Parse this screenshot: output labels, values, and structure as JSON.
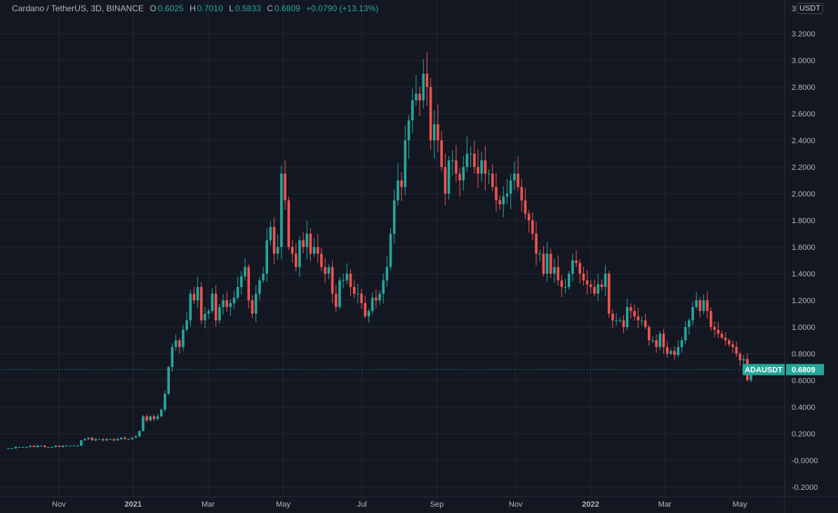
{
  "header": {
    "symbol": "Cardano / TetherUS, 3D, BINANCE",
    "open_label": "O",
    "open": "0.6025",
    "high_label": "H",
    "high": "0.7010",
    "low_label": "L",
    "low": "0.5833",
    "close_label": "C",
    "close": "0.6809",
    "change": "+0.0790 (+13.13%)"
  },
  "price_axis": {
    "unit": "USDT",
    "top_partial": "3"
  },
  "current_price": {
    "ticker": "ADAUSDT",
    "value": "0.6809",
    "price": 0.6809
  },
  "colors": {
    "background": "#131722",
    "up": "#26a69a",
    "down": "#ef5350",
    "grid": "#232733",
    "text": "#b2b5be"
  },
  "chart_data": {
    "type": "candlestick",
    "title": "Cardano / TetherUS, 3D, BINANCE",
    "xlabel": "",
    "ylabel": "USDT",
    "ylim": [
      -0.25,
      3.35
    ],
    "grid": true,
    "yticks": [
      3.2,
      3.0,
      2.8,
      2.6,
      2.4,
      2.2,
      2.0,
      1.8,
      1.6,
      1.4,
      1.2,
      1.0,
      0.8,
      0.6,
      0.4,
      0.2,
      0.0,
      -0.2
    ],
    "ytick_labels": [
      "3.2000",
      "3.0000",
      "2.8000",
      "2.6000",
      "2.4000",
      "2.2000",
      "2.0000",
      "1.8000",
      "1.6000",
      "1.4000",
      "1.2000",
      "1.0000",
      "0.8000",
      "0.6000",
      "0.4000",
      "0.2000",
      "-0.0000",
      "-0.2000"
    ],
    "xticks": [
      {
        "label": "Nov",
        "pos": 0.068
      },
      {
        "label": "2021",
        "pos": 0.168
      },
      {
        "label": "Mar",
        "pos": 0.269
      },
      {
        "label": "May",
        "pos": 0.37
      },
      {
        "label": "Jul",
        "pos": 0.476
      },
      {
        "label": "Sep",
        "pos": 0.577
      },
      {
        "label": "Nov",
        "pos": 0.683
      },
      {
        "label": "2022",
        "pos": 0.784
      },
      {
        "label": "Mar",
        "pos": 0.884
      },
      {
        "label": "May",
        "pos": 0.985
      }
    ],
    "closes": [
      0.09,
      0.09,
      0.1,
      0.1,
      0.1,
      0.1,
      0.11,
      0.1,
      0.11,
      0.11,
      0.1,
      0.1,
      0.1,
      0.11,
      0.1,
      0.11,
      0.11,
      0.11,
      0.11,
      0.11,
      0.15,
      0.16,
      0.17,
      0.15,
      0.16,
      0.16,
      0.15,
      0.16,
      0.16,
      0.15,
      0.16,
      0.17,
      0.16,
      0.16,
      0.17,
      0.18,
      0.22,
      0.33,
      0.3,
      0.33,
      0.31,
      0.33,
      0.38,
      0.5,
      0.7,
      0.85,
      0.9,
      0.85,
      0.98,
      1.05,
      1.25,
      1.2,
      1.3,
      1.05,
      1.1,
      1.12,
      1.25,
      1.05,
      1.15,
      1.2,
      1.15,
      1.18,
      1.22,
      1.3,
      1.38,
      1.45,
      1.2,
      1.1,
      1.25,
      1.35,
      1.4,
      1.65,
      1.75,
      1.55,
      1.6,
      2.15,
      1.95,
      1.6,
      1.55,
      1.45,
      1.65,
      1.6,
      1.7,
      1.55,
      1.6,
      1.55,
      1.45,
      1.4,
      1.45,
      1.25,
      1.15,
      1.35,
      1.35,
      1.4,
      1.3,
      1.25,
      1.25,
      1.18,
      1.08,
      1.12,
      1.22,
      1.2,
      1.25,
      1.35,
      1.45,
      1.7,
      1.95,
      2.1,
      2.05,
      2.4,
      2.55,
      2.7,
      2.75,
      2.7,
      2.9,
      2.8,
      2.4,
      2.52,
      2.4,
      2.2,
      2.0,
      2.25,
      2.25,
      2.15,
      2.1,
      2.2,
      2.3,
      2.3,
      2.2,
      2.15,
      2.25,
      2.15,
      2.15,
      2.05,
      1.95,
      1.92,
      1.98,
      2.0,
      2.1,
      2.15,
      2.05,
      1.95,
      1.85,
      1.8,
      1.7,
      1.55,
      1.55,
      1.4,
      1.55,
      1.4,
      1.45,
      1.35,
      1.3,
      1.3,
      1.4,
      1.5,
      1.48,
      1.4,
      1.35,
      1.32,
      1.3,
      1.25,
      1.32,
      1.3,
      1.4,
      1.1,
      1.05,
      1.05,
      1.05,
      1.0,
      1.15,
      1.12,
      1.08,
      1.05,
      1.05,
      1.0,
      0.9,
      0.9,
      0.85,
      0.95,
      0.85,
      0.8,
      0.82,
      0.79,
      0.85,
      0.9,
      1.0,
      1.05,
      1.15,
      1.2,
      1.12,
      1.2,
      1.12,
      1.0,
      0.98,
      0.95,
      0.92,
      0.9,
      0.87,
      0.85,
      0.8,
      0.75,
      0.76,
      0.6025,
      0.6809
    ],
    "last_candle": {
      "open": 0.6025,
      "high": 0.701,
      "low": 0.5833,
      "close": 0.6809
    }
  }
}
